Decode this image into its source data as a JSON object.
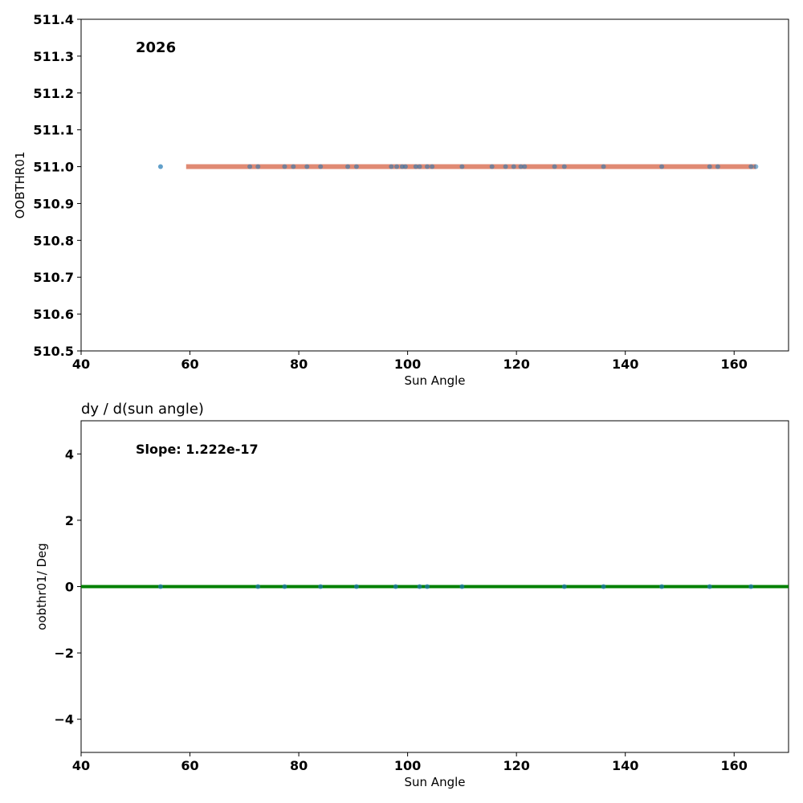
{
  "chart_data": [
    {
      "type": "scatter",
      "title": "",
      "annotation": "2026",
      "xlabel": "Sun Angle",
      "ylabel": "OOBTHR01",
      "xlim": [
        40,
        170
      ],
      "ylim": [
        510.5,
        511.4
      ],
      "xticks": [
        40,
        60,
        80,
        100,
        120,
        140,
        160
      ],
      "yticks": [
        510.5,
        510.6,
        510.7,
        510.8,
        510.9,
        511.0,
        511.1,
        511.2,
        511.3,
        511.4
      ],
      "series": [
        {
          "color": "#1f77b4",
          "x": [
            54.6,
            71.0,
            72.5,
            77.4,
            79.0,
            81.5,
            84.0,
            89.0,
            90.6,
            97.0,
            98.0,
            99.0,
            99.6,
            101.5,
            102.2,
            103.6,
            104.5,
            110.0,
            115.5,
            118.0,
            119.5,
            120.8,
            121.5,
            127.0,
            128.8,
            136.0,
            146.7,
            155.5,
            157.0,
            163.1,
            164.0
          ],
          "y": [
            511.0,
            511.0,
            511.0,
            511.0,
            511.0,
            511.0,
            511.0,
            511.0,
            511.0,
            511.0,
            511.0,
            511.0,
            511.0,
            511.0,
            511.0,
            511.0,
            511.0,
            511.0,
            511.0,
            511.0,
            511.0,
            511.0,
            511.0,
            511.0,
            511.0,
            511.0,
            511.0,
            511.0,
            511.0,
            511.0,
            511.0
          ]
        }
      ],
      "fit_line": {
        "color": "#e08a73",
        "x": [
          59.3,
          164.0
        ],
        "y": [
          511.0,
          511.0
        ]
      }
    },
    {
      "type": "scatter",
      "title": "dy / d(sun angle)",
      "annotation": "Slope: 1.222e-17",
      "xlabel": "Sun Angle",
      "ylabel": "oobthr01/ Deg",
      "xlim": [
        40,
        170
      ],
      "ylim": [
        -5,
        5
      ],
      "xticks": [
        40,
        60,
        80,
        100,
        120,
        140,
        160
      ],
      "yticks": [
        -4,
        -2,
        0,
        2,
        4
      ],
      "ytick_labels": [
        "−4",
        "−2",
        "0",
        "2",
        "4"
      ],
      "series": [
        {
          "color": "#1f77b4",
          "x": [
            54.6,
            72.5,
            77.4,
            84.0,
            90.6,
            97.8,
            102.2,
            103.6,
            110.0,
            128.8,
            136.0,
            146.7,
            155.5,
            163.1
          ],
          "y": [
            0,
            0,
            0,
            0,
            0,
            0,
            0,
            0,
            0,
            0,
            0,
            0,
            0,
            0
          ]
        }
      ],
      "fit_line": {
        "color": "#008000",
        "x": [
          40,
          170
        ],
        "y": [
          0,
          0
        ]
      }
    }
  ]
}
